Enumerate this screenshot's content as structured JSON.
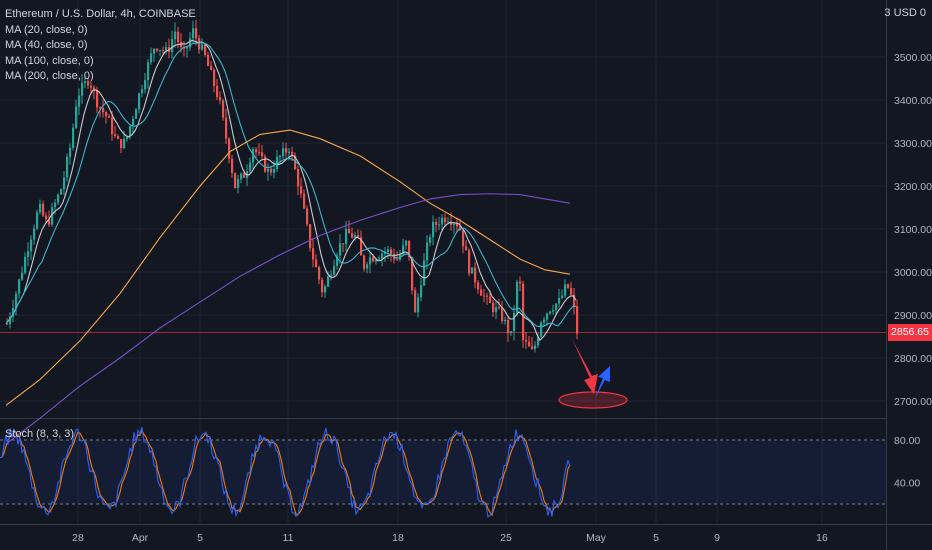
{
  "legend": {
    "title": "Ethereum / U.S. Dollar, 4h, COINBASE",
    "ma": [
      "MA (20, close, 0)",
      "MA (40, close, 0)",
      "MA (100, close, 0)",
      "MA (200, close, 0)"
    ]
  },
  "corner_label": "3 USD 0",
  "last_price_tag": "2856.65",
  "stoch_label": "Stoch (8, 3, 3)",
  "colors": {
    "up": "#26a69a",
    "down": "#ef5350",
    "ma20": "#c9cbcf",
    "ma40": "#3fb4c9",
    "ma100": "#f7a74a",
    "ma200": "#7b4fc9",
    "stoch_k": "#2962ff",
    "stoch_d": "#f57c00",
    "arrow_down": "#f23645",
    "arrow_up": "#2962ff"
  },
  "chart_data": [
    {
      "type": "candlestick",
      "title": "Ethereum / U.S. Dollar, 4h, COINBASE",
      "y_axis": {
        "ticks": [
          2700,
          2800,
          2900,
          3000,
          3100,
          3200,
          3300,
          3400,
          3500
        ],
        "tick_labels": [
          "2700.00",
          "2800.00",
          "2900.00",
          "3000.00",
          "3100.00",
          "3200.00",
          "3300.00",
          "3400.00",
          "3500.00"
        ],
        "range": [
          2630,
          3620
        ]
      },
      "x_axis": {
        "tick_labels": [
          "28",
          "Apr",
          "5",
          "11",
          "18",
          "25",
          "May",
          "5",
          "9",
          "16"
        ]
      },
      "last_price": 2856.65,
      "price_path_keypoints": {
        "t": [
          0,
          10,
          22,
          32,
          40,
          55,
          64,
          70,
          82,
          91,
          100,
          110,
          118,
          128,
          138,
          148,
          160,
          168,
          176,
          186,
          198,
          212,
          224,
          228,
          238,
          246,
          262,
          270,
          282,
          292,
          304,
          316,
          330,
          340,
          350,
          356,
          360,
          370,
          380,
          390,
          400,
          408,
          416,
          424,
          432,
          440,
          452,
          462,
          480,
          494,
          504,
          512,
          516,
          526,
          534,
          544,
          552,
          560,
          566,
          570
        ],
        "close": [
          2880,
          2960,
          3070,
          3150,
          3110,
          3200,
          3300,
          3410,
          3450,
          3390,
          3360,
          3300,
          3300,
          3380,
          3460,
          3530,
          3510,
          3560,
          3500,
          3560,
          3500,
          3400,
          3250,
          3200,
          3230,
          3290,
          3230,
          3260,
          3290,
          3200,
          3050,
          2950,
          3050,
          3090,
          3080,
          3010,
          3030,
          3040,
          3050,
          3030,
          3070,
          2900,
          3010,
          3100,
          3120,
          3130,
          3110,
          3010,
          2930,
          2900,
          2850,
          3010,
          2840,
          2810,
          2890,
          2920,
          2930,
          2970,
          2930,
          2860
        ]
      }
    },
    {
      "type": "line",
      "title": "Stoch (8, 3, 3)",
      "y_axis": {
        "ticks": [
          40,
          80
        ],
        "tick_labels": [
          "40.00",
          "80.00"
        ],
        "band": [
          20,
          80
        ]
      }
    }
  ]
}
